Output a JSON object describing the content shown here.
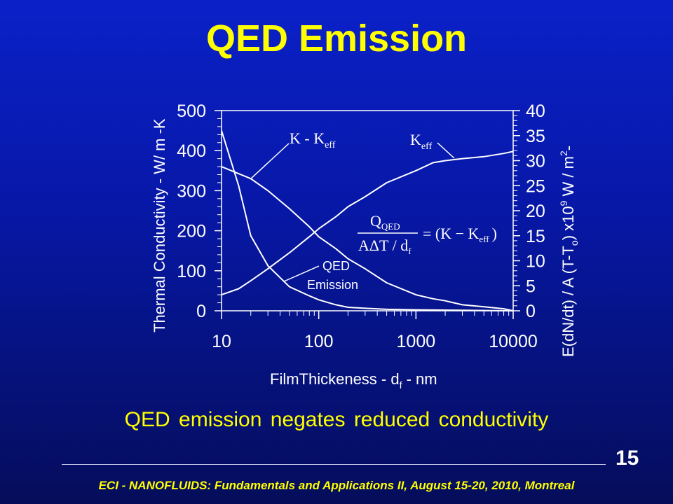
{
  "slide": {
    "title": "QED Emission",
    "subtitle": "QED emission negates reduced conductivity",
    "page_number": "15",
    "footer": "ECI - NANOFLUIDS: Fundamentals and Applications II, August 15-20, 2010, Montreal"
  },
  "colors": {
    "background": "#0718a8",
    "title": "#ffff00",
    "curves": "#ffffff"
  },
  "chart_data": {
    "type": "line",
    "x_scale": "log",
    "xlim": [
      10,
      10000
    ],
    "x_ticks": [
      "10",
      "100",
      "1000",
      "10000"
    ],
    "xlabel": "FilmThickeness - d",
    "xlabel_sub": "f",
    "xlabel_tail": " - nm",
    "ylabel_left": "Thermal Conductivity - W/ m -K",
    "ylim_left": [
      0,
      500
    ],
    "y_ticks_left": [
      "0",
      "100",
      "200",
      "300",
      "400",
      "500"
    ],
    "ylabel_right_parts": [
      "E(dN/dt) / A  (T-T",
      "o",
      ") x10",
      "9",
      " W / m",
      "2",
      "-"
    ],
    "ylim_right": [
      0,
      40
    ],
    "y_ticks_right": [
      "0",
      "5",
      "10",
      "15",
      "20",
      "25",
      "30",
      "35",
      "40"
    ],
    "series": [
      {
        "name": "K - Keff",
        "label_main": "K - K",
        "label_sub": "eff",
        "axis": "left",
        "x": [
          10,
          20,
          30,
          50,
          80,
          100,
          150,
          200,
          300,
          500,
          1000,
          1500,
          2000,
          3000,
          5000,
          8000,
          10000
        ],
        "y": [
          360,
          330,
          300,
          255,
          210,
          185,
          155,
          130,
          105,
          70,
          40,
          30,
          25,
          15,
          10,
          5,
          0
        ]
      },
      {
        "name": "Keff",
        "label_main": "K",
        "label_sub": "eff",
        "axis": "left",
        "x": [
          10,
          15,
          20,
          30,
          50,
          80,
          100,
          150,
          200,
          300,
          500,
          1000,
          1500,
          2000,
          3000,
          5000,
          8000,
          10000
        ],
        "y": [
          40,
          55,
          75,
          105,
          145,
          185,
          205,
          235,
          260,
          285,
          320,
          350,
          370,
          375,
          380,
          385,
          393,
          398
        ]
      },
      {
        "name": "QED Emission",
        "label_line1": "QED",
        "label_line2": "Emission",
        "axis": "right",
        "x": [
          10,
          15,
          20,
          30,
          50,
          80,
          100,
          150,
          200,
          300,
          500,
          1000,
          3000,
          10000
        ],
        "y": [
          36,
          25,
          15,
          9,
          4.8,
          3,
          2.2,
          1.2,
          0.7,
          0.5,
          0.3,
          0.2,
          0.1,
          0
        ]
      }
    ],
    "equation": {
      "num_main": "Q",
      "num_sub": "QED",
      "den": "AΔT / d",
      "den_sub": "f",
      "rhs_main": "= (K − K",
      "rhs_sub": "eff",
      "rhs_close": ")"
    }
  }
}
